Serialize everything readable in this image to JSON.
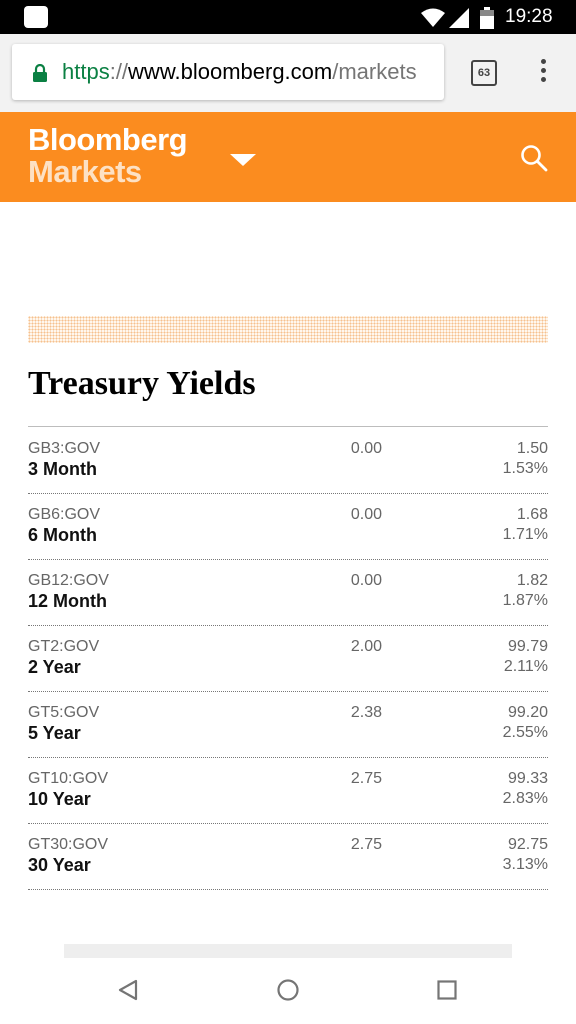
{
  "status_bar": {
    "time": "19:28",
    "icons": [
      "app-notification-icon",
      "wifi-icon",
      "cell-signal-icon",
      "battery-icon"
    ]
  },
  "browser": {
    "url_scheme": "https",
    "url_separator": "://",
    "url_host": "www.bloomberg.com",
    "url_path": "/markets",
    "tab_count": "63",
    "icons": [
      "lock-icon",
      "tabs-icon",
      "overflow-menu-icon"
    ],
    "secure_color": "#0b8043"
  },
  "header": {
    "brand_line1": "Bloomberg",
    "brand_line2": "Markets",
    "icons": [
      "caret-down-icon",
      "search-icon"
    ],
    "brand_color": "#fb8c1f"
  },
  "section": {
    "title": "Treasury Yields",
    "rows": [
      {
        "ticker": "GB3:GOV",
        "name": "3 Month",
        "coupon": "0.00",
        "price": "1.50",
        "yield": "1.53%"
      },
      {
        "ticker": "GB6:GOV",
        "name": "6 Month",
        "coupon": "0.00",
        "price": "1.68",
        "yield": "1.71%"
      },
      {
        "ticker": "GB12:GOV",
        "name": "12 Month",
        "coupon": "0.00",
        "price": "1.82",
        "yield": "1.87%"
      },
      {
        "ticker": "GT2:GOV",
        "name": "2 Year",
        "coupon": "2.00",
        "price": "99.79",
        "yield": "2.11%"
      },
      {
        "ticker": "GT5:GOV",
        "name": "5 Year",
        "coupon": "2.38",
        "price": "99.20",
        "yield": "2.55%"
      },
      {
        "ticker": "GT10:GOV",
        "name": "10 Year",
        "coupon": "2.75",
        "price": "99.33",
        "yield": "2.83%"
      },
      {
        "ticker": "GT30:GOV",
        "name": "30 Year",
        "coupon": "2.75",
        "price": "92.75",
        "yield": "3.13%"
      }
    ]
  },
  "nav_bar": {
    "icons": [
      "back-icon",
      "home-icon",
      "recents-icon"
    ]
  }
}
